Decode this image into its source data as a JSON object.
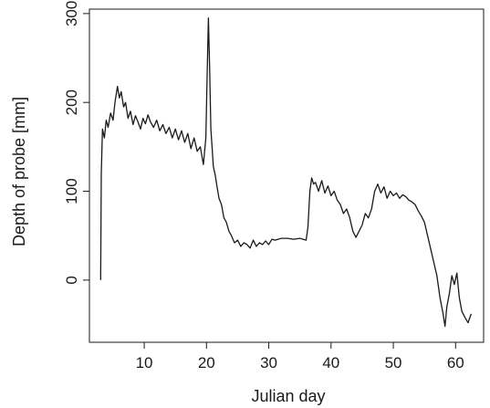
{
  "chart_data": {
    "type": "line",
    "title": "",
    "xlabel": "Julian day",
    "ylabel": "Depth of probe [mm]",
    "xlim": [
      1.2,
      64.5
    ],
    "ylim": [
      -70,
      305
    ],
    "x_ticks": [
      10,
      20,
      30,
      40,
      50,
      60
    ],
    "y_ticks": [
      0,
      100,
      200,
      300
    ],
    "grid": false,
    "legend": "none",
    "line_color": "#1a1a1a",
    "series": [
      {
        "x": [
          3.0,
          3.1,
          3.3,
          3.6,
          3.9,
          4.2,
          4.6,
          5.0,
          5.3,
          5.7,
          6.0,
          6.3,
          6.7,
          7.0,
          7.4,
          7.8,
          8.2,
          8.6,
          9.0,
          9.4,
          9.8,
          10.2,
          10.6,
          11.0,
          11.5,
          12.0,
          12.5,
          13.0,
          13.5,
          14.0,
          14.5,
          15.0,
          15.5,
          16.0,
          16.5,
          17.0,
          17.5,
          18.0,
          18.5,
          19.0,
          19.5,
          19.9,
          20.1,
          20.3,
          20.5,
          20.7,
          20.9,
          21.1,
          21.4,
          21.7,
          22.0,
          22.4,
          22.8,
          23.2,
          23.6,
          24.0,
          24.5,
          25.0,
          25.5,
          26.0,
          26.5,
          27.0,
          27.5,
          28.0,
          28.5,
          29.0,
          29.5,
          30.0,
          30.5,
          31.0,
          32.0,
          33.0,
          34.0,
          35.0,
          36.0,
          36.3,
          36.6,
          36.9,
          37.2,
          37.5,
          38.0,
          38.5,
          39.0,
          39.5,
          40.0,
          40.5,
          41.0,
          41.5,
          42.0,
          42.5,
          43.0,
          43.5,
          44.0,
          44.5,
          45.0,
          45.5,
          46.0,
          46.5,
          47.0,
          47.5,
          48.0,
          48.5,
          49.0,
          49.5,
          50.0,
          50.5,
          51.0,
          51.5,
          52.0,
          52.5,
          53.0,
          53.5,
          54.0,
          54.5,
          55.0,
          55.5,
          56.0,
          56.5,
          57.0,
          57.5,
          58.0,
          58.3,
          58.6,
          59.0,
          59.4,
          59.8,
          60.2,
          60.6,
          61.0,
          61.5,
          62.0,
          62.5
        ],
        "y": [
          0,
          120,
          170,
          160,
          180,
          172,
          188,
          180,
          200,
          218,
          205,
          212,
          195,
          200,
          182,
          190,
          175,
          185,
          178,
          170,
          182,
          176,
          186,
          178,
          172,
          180,
          168,
          175,
          165,
          172,
          160,
          170,
          158,
          168,
          155,
          165,
          148,
          160,
          145,
          150,
          130,
          160,
          230,
          295,
          240,
          170,
          150,
          128,
          118,
          105,
          92,
          85,
          70,
          65,
          55,
          50,
          42,
          45,
          38,
          42,
          40,
          36,
          45,
          38,
          42,
          40,
          44,
          40,
          46,
          45,
          47,
          47,
          46,
          47,
          45,
          60,
          100,
          115,
          108,
          110,
          100,
          112,
          98,
          106,
          95,
          100,
          90,
          85,
          75,
          80,
          70,
          55,
          48,
          55,
          62,
          75,
          70,
          80,
          100,
          108,
          98,
          105,
          92,
          100,
          95,
          98,
          92,
          96,
          94,
          90,
          88,
          85,
          78,
          72,
          65,
          50,
          35,
          20,
          5,
          -20,
          -38,
          -52,
          -30,
          -15,
          5,
          -5,
          8,
          -20,
          -35,
          -42,
          -48,
          -38
        ],
        "values": [
          0,
          120,
          170,
          160,
          180,
          172,
          188,
          180,
          200,
          218,
          205,
          212,
          195,
          200,
          182,
          190,
          175,
          185,
          178,
          170,
          182,
          176,
          186,
          178,
          172,
          180,
          168,
          175,
          165,
          172,
          160,
          170,
          158,
          168,
          155,
          165,
          148,
          160,
          145,
          150,
          130,
          160,
          230,
          295,
          240,
          170,
          150,
          128,
          118,
          105,
          92,
          85,
          70,
          65,
          55,
          50,
          42,
          45,
          38,
          42,
          40,
          36,
          45,
          38,
          42,
          40,
          44,
          40,
          46,
          45,
          47,
          47,
          46,
          47,
          45,
          60,
          100,
          115,
          108,
          110,
          100,
          112,
          98,
          106,
          95,
          100,
          90,
          85,
          75,
          80,
          70,
          55,
          48,
          55,
          62,
          75,
          70,
          80,
          100,
          108,
          98,
          105,
          92,
          100,
          95,
          98,
          92,
          96,
          94,
          90,
          88,
          85,
          78,
          72,
          65,
          50,
          35,
          20,
          5,
          -20,
          -38,
          -52,
          -30,
          -15,
          5,
          -5,
          8,
          -20,
          -35,
          -42,
          -48,
          -38
        ]
      }
    ]
  }
}
